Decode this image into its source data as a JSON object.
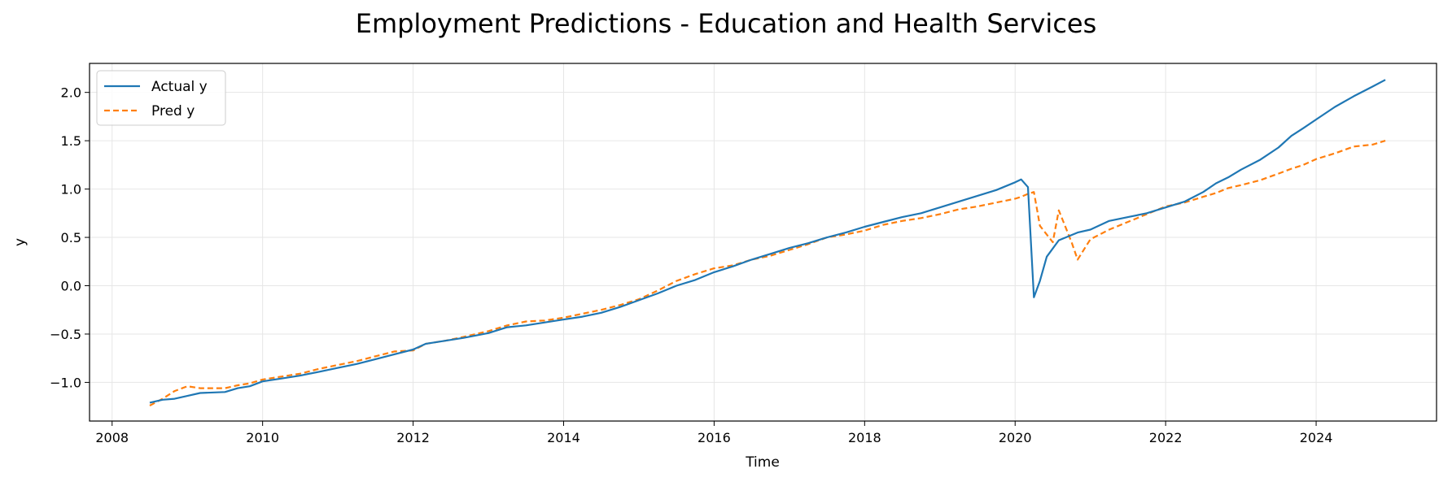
{
  "chart_data": {
    "type": "line",
    "title": "Employment Predictions - Education and Health Services",
    "xlabel": "Time",
    "ylabel": "y",
    "xlim": [
      2007.7,
      2025.6
    ],
    "ylim": [
      -1.4,
      2.3
    ],
    "xticks": [
      2008,
      2010,
      2012,
      2014,
      2016,
      2018,
      2020,
      2022,
      2024
    ],
    "xtick_labels": [
      "2008",
      "2010",
      "2012",
      "2014",
      "2016",
      "2018",
      "2020",
      "2022",
      "2024"
    ],
    "yticks": [
      -1.0,
      -0.5,
      0.0,
      0.5,
      1.0,
      1.5,
      2.0
    ],
    "ytick_labels": [
      "−1.0",
      "−0.5",
      "0.0",
      "0.5",
      "1.0",
      "1.5",
      "2.0"
    ],
    "grid": true,
    "legend_position": "top-left",
    "series": [
      {
        "name": "Actual y",
        "color": "#1f77b4",
        "style": "solid",
        "points": [
          [
            2008.5,
            -1.21
          ],
          [
            2008.67,
            -1.18
          ],
          [
            2008.83,
            -1.17
          ],
          [
            2009.0,
            -1.14
          ],
          [
            2009.17,
            -1.11
          ],
          [
            2009.5,
            -1.1
          ],
          [
            2009.67,
            -1.06
          ],
          [
            2009.83,
            -1.04
          ],
          [
            2010.0,
            -0.99
          ],
          [
            2010.25,
            -0.96
          ],
          [
            2010.5,
            -0.93
          ],
          [
            2010.75,
            -0.89
          ],
          [
            2011.0,
            -0.85
          ],
          [
            2011.25,
            -0.81
          ],
          [
            2011.5,
            -0.76
          ],
          [
            2011.75,
            -0.71
          ],
          [
            2012.0,
            -0.66
          ],
          [
            2012.17,
            -0.6
          ],
          [
            2012.42,
            -0.57
          ],
          [
            2012.67,
            -0.54
          ],
          [
            2013.0,
            -0.49
          ],
          [
            2013.25,
            -0.43
          ],
          [
            2013.5,
            -0.41
          ],
          [
            2013.75,
            -0.38
          ],
          [
            2014.0,
            -0.35
          ],
          [
            2014.25,
            -0.32
          ],
          [
            2014.5,
            -0.28
          ],
          [
            2014.75,
            -0.22
          ],
          [
            2015.0,
            -0.15
          ],
          [
            2015.25,
            -0.08
          ],
          [
            2015.5,
            0.0
          ],
          [
            2015.75,
            0.06
          ],
          [
            2016.0,
            0.14
          ],
          [
            2016.25,
            0.2
          ],
          [
            2016.5,
            0.27
          ],
          [
            2016.75,
            0.33
          ],
          [
            2017.0,
            0.39
          ],
          [
            2017.25,
            0.44
          ],
          [
            2017.5,
            0.5
          ],
          [
            2017.75,
            0.55
          ],
          [
            2018.0,
            0.61
          ],
          [
            2018.25,
            0.66
          ],
          [
            2018.5,
            0.71
          ],
          [
            2018.75,
            0.75
          ],
          [
            2019.0,
            0.81
          ],
          [
            2019.25,
            0.87
          ],
          [
            2019.5,
            0.93
          ],
          [
            2019.75,
            0.99
          ],
          [
            2020.0,
            1.07
          ],
          [
            2020.08,
            1.1
          ],
          [
            2020.17,
            1.02
          ],
          [
            2020.25,
            -0.12
          ],
          [
            2020.33,
            0.05
          ],
          [
            2020.42,
            0.3
          ],
          [
            2020.58,
            0.47
          ],
          [
            2020.83,
            0.55
          ],
          [
            2021.0,
            0.58
          ],
          [
            2021.25,
            0.67
          ],
          [
            2021.5,
            0.71
          ],
          [
            2021.75,
            0.75
          ],
          [
            2022.0,
            0.81
          ],
          [
            2022.25,
            0.87
          ],
          [
            2022.5,
            0.97
          ],
          [
            2022.67,
            1.06
          ],
          [
            2022.83,
            1.12
          ],
          [
            2023.0,
            1.2
          ],
          [
            2023.25,
            1.3
          ],
          [
            2023.5,
            1.43
          ],
          [
            2023.67,
            1.55
          ],
          [
            2023.83,
            1.63
          ],
          [
            2024.0,
            1.72
          ],
          [
            2024.25,
            1.85
          ],
          [
            2024.5,
            1.96
          ],
          [
            2024.75,
            2.06
          ],
          [
            2024.92,
            2.13
          ]
        ]
      },
      {
        "name": "Pred y",
        "color": "#ff7f0e",
        "style": "dashed",
        "points": [
          [
            2008.5,
            -1.24
          ],
          [
            2008.67,
            -1.17
          ],
          [
            2008.83,
            -1.09
          ],
          [
            2009.0,
            -1.04
          ],
          [
            2009.17,
            -1.06
          ],
          [
            2009.5,
            -1.06
          ],
          [
            2009.67,
            -1.03
          ],
          [
            2009.83,
            -1.01
          ],
          [
            2010.0,
            -0.97
          ],
          [
            2010.25,
            -0.94
          ],
          [
            2010.5,
            -0.91
          ],
          [
            2010.75,
            -0.86
          ],
          [
            2011.0,
            -0.82
          ],
          [
            2011.25,
            -0.78
          ],
          [
            2011.5,
            -0.73
          ],
          [
            2011.75,
            -0.68
          ],
          [
            2012.0,
            -0.67
          ],
          [
            2012.17,
            -0.6
          ],
          [
            2012.42,
            -0.57
          ],
          [
            2012.67,
            -0.53
          ],
          [
            2013.0,
            -0.47
          ],
          [
            2013.25,
            -0.41
          ],
          [
            2013.5,
            -0.37
          ],
          [
            2013.75,
            -0.36
          ],
          [
            2014.0,
            -0.33
          ],
          [
            2014.25,
            -0.29
          ],
          [
            2014.5,
            -0.25
          ],
          [
            2014.75,
            -0.2
          ],
          [
            2015.0,
            -0.14
          ],
          [
            2015.25,
            -0.05
          ],
          [
            2015.5,
            0.05
          ],
          [
            2015.75,
            0.12
          ],
          [
            2016.0,
            0.18
          ],
          [
            2016.25,
            0.21
          ],
          [
            2016.5,
            0.27
          ],
          [
            2016.75,
            0.31
          ],
          [
            2017.0,
            0.37
          ],
          [
            2017.25,
            0.43
          ],
          [
            2017.5,
            0.5
          ],
          [
            2017.75,
            0.53
          ],
          [
            2018.0,
            0.57
          ],
          [
            2018.25,
            0.63
          ],
          [
            2018.5,
            0.67
          ],
          [
            2018.75,
            0.7
          ],
          [
            2019.0,
            0.74
          ],
          [
            2019.25,
            0.79
          ],
          [
            2019.5,
            0.82
          ],
          [
            2019.75,
            0.86
          ],
          [
            2020.0,
            0.9
          ],
          [
            2020.08,
            0.92
          ],
          [
            2020.17,
            0.95
          ],
          [
            2020.25,
            0.97
          ],
          [
            2020.33,
            0.62
          ],
          [
            2020.5,
            0.45
          ],
          [
            2020.58,
            0.78
          ],
          [
            2020.75,
            0.45
          ],
          [
            2020.83,
            0.27
          ],
          [
            2021.0,
            0.48
          ],
          [
            2021.25,
            0.58
          ],
          [
            2021.5,
            0.66
          ],
          [
            2021.75,
            0.74
          ],
          [
            2022.0,
            0.82
          ],
          [
            2022.25,
            0.86
          ],
          [
            2022.5,
            0.92
          ],
          [
            2022.67,
            0.96
          ],
          [
            2022.83,
            1.01
          ],
          [
            2023.0,
            1.04
          ],
          [
            2023.25,
            1.09
          ],
          [
            2023.5,
            1.16
          ],
          [
            2023.67,
            1.21
          ],
          [
            2023.83,
            1.25
          ],
          [
            2024.0,
            1.31
          ],
          [
            2024.25,
            1.37
          ],
          [
            2024.5,
            1.44
          ],
          [
            2024.75,
            1.46
          ],
          [
            2024.92,
            1.5
          ]
        ]
      }
    ]
  }
}
